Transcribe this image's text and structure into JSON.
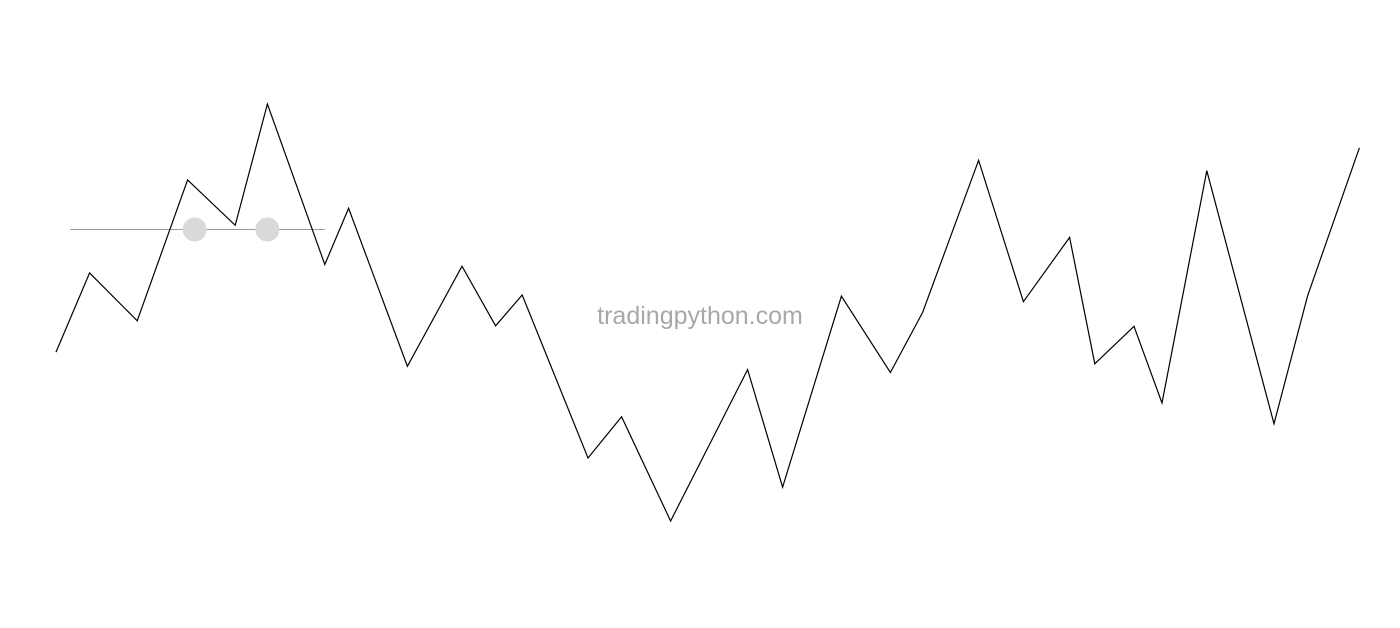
{
  "watermark": "tradingpython.com",
  "colors": {
    "background": "#ffffff",
    "line": "#000000",
    "level_line": "#9a9a9a",
    "touch_marker": "#d9d9d9",
    "watermark": "#a8a8a8"
  },
  "chart_data": {
    "type": "line",
    "title": "",
    "xlabel": "",
    "ylabel": "",
    "grid": false,
    "axes_visible": false,
    "xlim": [
      0,
      1
    ],
    "ylim": [
      0,
      1
    ],
    "series": [
      {
        "x": [
          0.04,
          0.064,
          0.098,
          0.134,
          0.168,
          0.191,
          0.232,
          0.249,
          0.291,
          0.33,
          0.354,
          0.373,
          0.42,
          0.444,
          0.479,
          0.534,
          0.559,
          0.601,
          0.636,
          0.659,
          0.699,
          0.731,
          0.764,
          0.782,
          0.81,
          0.83,
          0.862,
          0.91,
          0.934,
          0.971
        ],
        "y": [
          0.405,
          0.595,
          0.48,
          0.818,
          0.709,
          1.0,
          0.615,
          0.75,
          0.371,
          0.611,
          0.468,
          0.542,
          0.151,
          0.25,
          0.0,
          0.363,
          0.081,
          0.539,
          0.356,
          0.5,
          0.865,
          0.526,
          0.68,
          0.377,
          0.467,
          0.283,
          0.84,
          0.233,
          0.54,
          0.895
        ]
      }
    ],
    "level_line": {
      "y": 0.699,
      "x_start": 0.05,
      "x_end": 0.232
    },
    "touch_points": [
      {
        "x": 0.139,
        "y": 0.699
      },
      {
        "x": 0.191,
        "y": 0.699
      }
    ]
  }
}
